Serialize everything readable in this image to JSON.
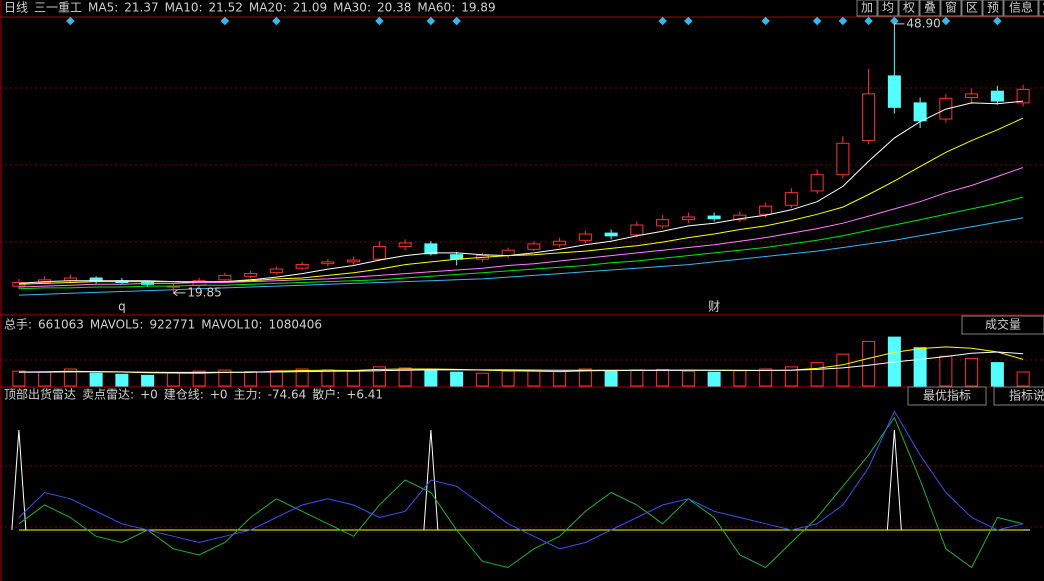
{
  "toolbar": [
    "加",
    "均",
    "权",
    "叠",
    "窗",
    "区",
    "预",
    "信息"
  ],
  "chart_data": [
    {
      "type": "candlestick",
      "period": "日线",
      "title": "三一重工",
      "up_color": "#ff3232",
      "down_color": "#54ffff",
      "ylim": [
        18.5,
        50
      ],
      "open": [
        20.6,
        21.0,
        21.2,
        21.5,
        21.2,
        21.0,
        20.5,
        20.7,
        21.3,
        21.7,
        22.1,
        22.6,
        23.1,
        23.3,
        23.6,
        25.0,
        25.3,
        24.1,
        23.6,
        24.0,
        24.7,
        25.2,
        25.7,
        26.5,
        26.3,
        27.3,
        28.0,
        28.4,
        28.0,
        28.6,
        29.6,
        31.2,
        33.0,
        36.8,
        44.0,
        41.0,
        39.2,
        41.6,
        42.3,
        41.0
      ],
      "high": [
        21.4,
        21.7,
        21.9,
        21.7,
        21.5,
        21.2,
        20.9,
        21.5,
        22.1,
        22.3,
        22.8,
        23.3,
        23.6,
        23.9,
        25.6,
        25.8,
        25.6,
        24.4,
        24.3,
        24.9,
        25.6,
        26.0,
        26.8,
        26.9,
        27.8,
        28.5,
        28.8,
        28.8,
        28.9,
        29.9,
        31.5,
        33.6,
        37.3,
        44.8,
        48.9,
        41.6,
        42.0,
        42.6,
        42.9,
        43.0
      ],
      "low": [
        20.3,
        20.8,
        21.0,
        20.9,
        20.8,
        20.5,
        19.85,
        20.5,
        21.1,
        21.5,
        21.9,
        22.4,
        22.8,
        23.0,
        23.4,
        24.6,
        24.0,
        22.9,
        23.3,
        23.7,
        24.5,
        24.9,
        25.4,
        25.8,
        26.0,
        27.0,
        27.6,
        27.8,
        27.7,
        28.3,
        29.3,
        30.9,
        32.6,
        36.4,
        39.8,
        38.2,
        38.8,
        40.9,
        40.8,
        40.6
      ],
      "close": [
        21.0,
        21.3,
        21.5,
        21.2,
        21.0,
        20.8,
        20.6,
        21.2,
        21.8,
        22.0,
        22.5,
        23.0,
        23.3,
        23.5,
        25.0,
        25.4,
        24.2,
        23.6,
        24.0,
        24.6,
        25.3,
        25.6,
        26.4,
        26.2,
        27.4,
        28.0,
        28.3,
        28.1,
        28.5,
        29.5,
        31.0,
        33.0,
        36.5,
        42.0,
        40.5,
        39.0,
        41.5,
        42.0,
        41.2,
        42.5
      ],
      "max_label": "48.90",
      "min_label": "19.85",
      "markers": [
        {
          "text": "q",
          "at": 4,
          "color": "#ff3232"
        },
        {
          "text": "财",
          "at": 27,
          "color": "#c8c8c8"
        }
      ],
      "events": [
        2,
        8,
        10,
        14,
        16,
        17,
        25,
        26,
        29,
        31,
        32,
        33,
        34,
        36,
        38
      ],
      "series": [
        {
          "name": "MA5:",
          "readout": 21.37,
          "color": "#ffffff",
          "values": [
            20.9,
            21.1,
            21.2,
            21.2,
            21.2,
            21.2,
            21.1,
            21.0,
            21.1,
            21.3,
            21.6,
            22.0,
            22.5,
            22.9,
            23.5,
            24.0,
            24.3,
            24.3,
            24.1,
            24.0,
            24.3,
            24.7,
            25.2,
            25.6,
            26.2,
            26.7,
            27.3,
            27.6,
            28.1,
            28.5,
            29.1,
            30.0,
            31.7,
            34.5,
            37.1,
            38.9,
            40.3,
            41.0,
            40.9,
            41.2
          ]
        },
        {
          "name": "MA10:",
          "readout": 21.52,
          "color": "#ffff00",
          "values": [
            20.8,
            20.9,
            21.0,
            21.1,
            21.1,
            21.1,
            21.1,
            21.1,
            21.1,
            21.2,
            21.4,
            21.5,
            21.8,
            22.1,
            22.5,
            23.0,
            23.3,
            23.6,
            23.8,
            24.0,
            24.1,
            24.3,
            24.5,
            24.8,
            25.1,
            25.5,
            26.0,
            26.4,
            26.9,
            27.3,
            27.9,
            28.6,
            29.4,
            30.8,
            32.3,
            33.9,
            35.5,
            36.8,
            38.0,
            39.3
          ]
        },
        {
          "name": "MA20:",
          "readout": 21.09,
          "color": "#ff80ff",
          "values": [
            20.5,
            20.6,
            20.7,
            20.8,
            20.8,
            20.9,
            20.9,
            21.0,
            21.0,
            21.1,
            21.2,
            21.3,
            21.4,
            21.6,
            21.8,
            22.0,
            22.2,
            22.4,
            22.6,
            22.9,
            23.1,
            23.4,
            23.7,
            24.0,
            24.3,
            24.6,
            24.9,
            25.2,
            25.6,
            26.0,
            26.5,
            27.0,
            27.6,
            28.4,
            29.2,
            30.0,
            31.0,
            31.8,
            32.8,
            33.8
          ]
        },
        {
          "name": "MA30:",
          "readout": 20.38,
          "color": "#00e600",
          "values": [
            20.3,
            20.4,
            20.4,
            20.5,
            20.5,
            20.6,
            20.6,
            20.7,
            20.7,
            20.8,
            20.9,
            21.0,
            21.1,
            21.2,
            21.3,
            21.5,
            21.7,
            21.9,
            22.1,
            22.3,
            22.5,
            22.7,
            22.9,
            23.2,
            23.4,
            23.7,
            24.0,
            24.3,
            24.6,
            24.9,
            25.3,
            25.7,
            26.2,
            26.8,
            27.4,
            28.0,
            28.6,
            29.2,
            29.8,
            30.5
          ]
        },
        {
          "name": "MA60:",
          "readout": 19.89,
          "color": "#3cb4f0",
          "values": [
            19.6,
            19.7,
            19.8,
            19.9,
            20.0,
            20.1,
            20.2,
            20.3,
            20.4,
            20.5,
            20.6,
            20.7,
            20.8,
            20.9,
            21.0,
            21.1,
            21.2,
            21.3,
            21.4,
            21.6,
            21.8,
            22.0,
            22.2,
            22.4,
            22.6,
            22.8,
            23.0,
            23.3,
            23.6,
            23.9,
            24.2,
            24.5,
            24.9,
            25.3,
            25.7,
            26.2,
            26.7,
            27.2,
            27.7,
            28.2
          ]
        }
      ]
    },
    {
      "type": "bar",
      "title": "成交量",
      "readout_label": "总手:",
      "readout": 661063,
      "ylim": [
        0,
        2400000
      ],
      "values": [
        700000,
        650000,
        800000,
        600000,
        550000,
        500000,
        620000,
        700000,
        750000,
        680000,
        720000,
        800000,
        760000,
        700000,
        900000,
        850000,
        780000,
        650000,
        600000,
        700000,
        750000,
        680000,
        800000,
        720000,
        760000,
        780000,
        700000,
        650000,
        720000,
        800000,
        900000,
        1100000,
        1500000,
        2100000,
        2300000,
        1800000,
        1400000,
        1300000,
        1100000,
        661063
      ],
      "series": [
        {
          "name": "MAVOL5:",
          "readout": 922771,
          "color": "#ffff00",
          "values": [
            660000,
            670000,
            690000,
            680000,
            660000,
            620000,
            610000,
            600000,
            640000,
            650000,
            690000,
            730000,
            740000,
            730000,
            780000,
            800000,
            800000,
            780000,
            750000,
            720000,
            700000,
            680000,
            710000,
            730000,
            740000,
            750000,
            750000,
            740000,
            730000,
            730000,
            750000,
            830000,
            1000000,
            1300000,
            1580000,
            1760000,
            1840000,
            1780000,
            1600000,
            1250000
          ]
        },
        {
          "name": "MAVOL10:",
          "readout": 1080406,
          "color": "#ffffff",
          "values": [
            650000,
            655000,
            665000,
            670000,
            665000,
            650000,
            640000,
            640000,
            645000,
            650000,
            660000,
            680000,
            690000,
            700000,
            720000,
            740000,
            760000,
            760000,
            760000,
            760000,
            750000,
            740000,
            745000,
            740000,
            735000,
            735000,
            740000,
            745000,
            740000,
            735000,
            740000,
            780000,
            850000,
            980000,
            1130000,
            1250000,
            1390000,
            1540000,
            1600000,
            1520000
          ]
        }
      ]
    },
    {
      "type": "line",
      "title": "顶部出货雷达",
      "buttons": [
        "最优指标",
        "指标说明"
      ],
      "ylim": [
        -40,
        100
      ],
      "series": [
        {
          "name": "卖点雷达:",
          "readout": "+0",
          "color": "#ffffff",
          "style": "spike",
          "values": [
            80,
            0,
            0,
            0,
            0,
            0,
            0,
            0,
            0,
            0,
            0,
            0,
            0,
            0,
            0,
            0,
            80,
            0,
            0,
            0,
            0,
            0,
            0,
            0,
            0,
            0,
            0,
            0,
            0,
            0,
            0,
            0,
            0,
            0,
            80,
            0,
            0,
            0,
            0,
            0
          ]
        },
        {
          "name": "建仓线:",
          "readout": "+0",
          "color": "#ffff00",
          "style": "line",
          "values": [
            0,
            0,
            0,
            0,
            0,
            0,
            0,
            0,
            0,
            0,
            0,
            0,
            0,
            0,
            0,
            0,
            0,
            0,
            0,
            0,
            0,
            0,
            0,
            0,
            0,
            0,
            0,
            0,
            0,
            0,
            0,
            0,
            0,
            0,
            0,
            0,
            0,
            0,
            0,
            0
          ]
        },
        {
          "name": "主力:",
          "readout": "-74.64",
          "color": "#1fae3a",
          "style": "line",
          "values": [
            5,
            20,
            10,
            -5,
            -10,
            0,
            -15,
            -20,
            -10,
            10,
            25,
            15,
            5,
            -5,
            20,
            40,
            30,
            0,
            -25,
            -30,
            -15,
            -5,
            15,
            30,
            20,
            5,
            25,
            10,
            -20,
            -30,
            -10,
            10,
            35,
            60,
            90,
            40,
            -15,
            -30,
            10,
            5
          ]
        },
        {
          "name": "散户:",
          "readout": "+6.41",
          "color": "#3c50f0",
          "style": "line",
          "values": [
            10,
            30,
            25,
            15,
            5,
            0,
            -5,
            -10,
            -5,
            0,
            10,
            20,
            25,
            20,
            10,
            15,
            40,
            35,
            20,
            5,
            -5,
            -15,
            -10,
            0,
            10,
            20,
            25,
            15,
            10,
            5,
            0,
            5,
            20,
            50,
            95,
            60,
            30,
            10,
            0,
            5
          ]
        }
      ]
    }
  ]
}
